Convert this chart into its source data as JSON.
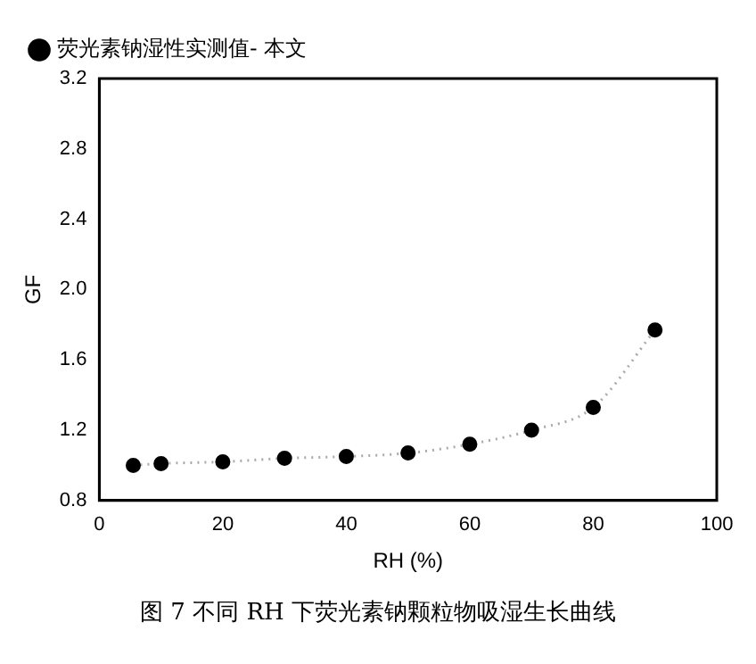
{
  "chart_data": {
    "type": "line",
    "xlabel": "RH (%)",
    "ylabel": "GF",
    "annotations": [
      "图 7 不同 RH 下荧光素钠颗粒物吸湿生长曲线"
    ],
    "x": [
      5.5,
      10,
      20,
      30,
      40,
      50,
      60,
      70,
      80,
      90
    ],
    "series": [
      {
        "name": "荧光素钠湿性实测值- 本文",
        "color": "#000000",
        "values": [
          1.0,
          1.01,
          1.02,
          1.04,
          1.05,
          1.07,
          1.12,
          1.2,
          1.33,
          1.77
        ]
      }
    ],
    "xlim": [
      0,
      100
    ],
    "xticks": [
      0,
      20,
      40,
      60,
      80,
      100
    ],
    "ylim": [
      0.8,
      3.2
    ],
    "yticks": [
      0.8,
      1.2,
      1.6,
      {
        "value": 2,
        "label": "2.0"
      },
      2.4,
      2.8,
      3.2
    ],
    "grid": false,
    "legend": "top left",
    "marker": "circle",
    "line_style": "dotted"
  }
}
